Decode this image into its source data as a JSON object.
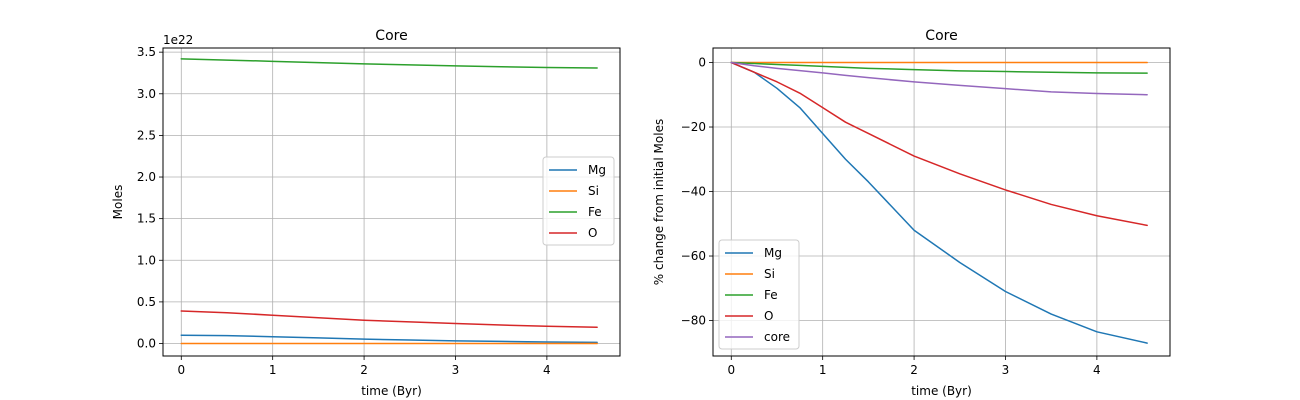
{
  "colors": {
    "Mg": "#1f77b4",
    "Si": "#ff7f0e",
    "Fe": "#2ca02c",
    "O": "#d62728",
    "core": "#9467bd"
  },
  "chart_data": [
    {
      "type": "line",
      "title": "Core",
      "xlabel": "time (Byr)",
      "ylabel": "Moles",
      "offset_text": "1e22",
      "xlim": [
        -0.2,
        4.8
      ],
      "ylim": [
        -0.15,
        3.55
      ],
      "xticks": [
        0,
        1,
        2,
        3,
        4
      ],
      "xtick_labels": [
        "0",
        "1",
        "2",
        "3",
        "4"
      ],
      "yticks": [
        0.0,
        0.5,
        1.0,
        1.5,
        2.0,
        2.5,
        3.0,
        3.5
      ],
      "ytick_labels": [
        "0.0",
        "0.5",
        "1.0",
        "1.5",
        "2.0",
        "2.5",
        "3.0",
        "3.5"
      ],
      "grid": true,
      "legend_position": "center-right",
      "x": [
        0,
        0.5,
        1,
        1.5,
        2,
        2.5,
        3,
        3.5,
        4,
        4.55
      ],
      "series": [
        {
          "name": "Mg",
          "color_key": "Mg",
          "values": [
            0.1,
            0.095,
            0.082,
            0.068,
            0.053,
            0.042,
            0.032,
            0.025,
            0.018,
            0.014
          ]
        },
        {
          "name": "Si",
          "color_key": "Si",
          "values": [
            0.0,
            0.0,
            0.0,
            0.0,
            0.0,
            0.0,
            0.0,
            0.0,
            0.0,
            0.0
          ]
        },
        {
          "name": "Fe",
          "color_key": "Fe",
          "values": [
            3.42,
            3.405,
            3.39,
            3.375,
            3.36,
            3.347,
            3.335,
            3.325,
            3.315,
            3.31
          ]
        },
        {
          "name": "O",
          "color_key": "O",
          "values": [
            0.39,
            0.37,
            0.34,
            0.31,
            0.28,
            0.26,
            0.24,
            0.222,
            0.207,
            0.195
          ]
        }
      ]
    },
    {
      "type": "line",
      "title": "Core",
      "xlabel": "time (Byr)",
      "ylabel": "% change from initial Moles",
      "xlim": [
        -0.2,
        4.8
      ],
      "ylim": [
        -91,
        4.5
      ],
      "xticks": [
        0,
        1,
        2,
        3,
        4
      ],
      "xtick_labels": [
        "0",
        "1",
        "2",
        "3",
        "4"
      ],
      "yticks": [
        0,
        -20,
        -40,
        -60,
        -80
      ],
      "ytick_labels": [
        "0",
        "−20",
        "−40",
        "−60",
        "−80"
      ],
      "grid": true,
      "legend_position": "lower-left",
      "x": [
        0,
        0.25,
        0.5,
        0.75,
        1,
        1.25,
        1.5,
        2,
        2.5,
        3,
        3.5,
        4,
        4.55
      ],
      "series": [
        {
          "name": "Mg",
          "color_key": "Mg",
          "values": [
            0,
            -3,
            -8,
            -14,
            -22,
            -30,
            -37,
            -52,
            -62,
            -71,
            -78,
            -83.5,
            -87
          ]
        },
        {
          "name": "Si",
          "color_key": "Si",
          "values": [
            0,
            0,
            0,
            0,
            0,
            0,
            0,
            0,
            0,
            0,
            0,
            0,
            0
          ]
        },
        {
          "name": "Fe",
          "color_key": "Fe",
          "values": [
            0,
            -0.3,
            -0.6,
            -0.9,
            -1.2,
            -1.5,
            -1.8,
            -2.2,
            -2.6,
            -2.8,
            -3.0,
            -3.2,
            -3.3
          ]
        },
        {
          "name": "O",
          "color_key": "O",
          "values": [
            0,
            -3,
            -6,
            -9.5,
            -14,
            -18.5,
            -22,
            -29,
            -34.5,
            -39.5,
            -44,
            -47.5,
            -50.5
          ]
        },
        {
          "name": "core",
          "color_key": "core",
          "values": [
            0,
            -1,
            -1.8,
            -2.5,
            -3.2,
            -4,
            -4.7,
            -6,
            -7.1,
            -8.1,
            -9.1,
            -9.6,
            -10
          ]
        }
      ]
    }
  ]
}
